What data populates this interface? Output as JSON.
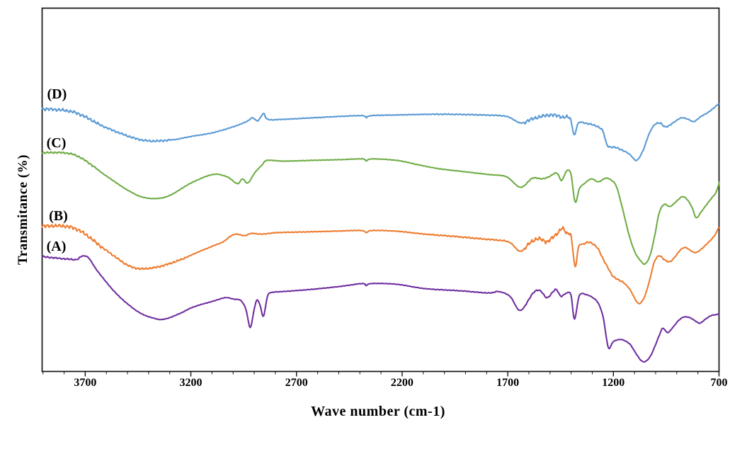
{
  "chart_data": {
    "type": "line",
    "title": "",
    "xlabel": "Wave number (cm-1)",
    "ylabel": "Transmitance (%)",
    "legend_position": "inline-curve-labels",
    "grid": false,
    "x_axis": {
      "min": 700,
      "max": 3904,
      "reversed": true,
      "major_ticks": [
        3700,
        3200,
        2700,
        2200,
        1700,
        1200,
        700
      ],
      "minor_tick_step": 100
    },
    "y_axis": {
      "min": 0,
      "max": 100,
      "ticks": [],
      "note": "axis has no tick labels; values are relative transmittance offsets (arbitrary units, 0 = plot bottom, 100 = plot top)"
    },
    "series": [
      {
        "name": "D",
        "label": "(D)",
        "color": "#5B9BD5",
        "label_pos": [
          3834,
          76.2
        ],
        "default_noise": 0.35,
        "noise_bands": [
          [
            3904,
            3640,
            1.7
          ],
          [
            3640,
            3300,
            1.1
          ],
          [
            2060,
            1700,
            0.6
          ],
          [
            1620,
            1395,
            1.9
          ],
          [
            1340,
            1150,
            0.9
          ],
          [
            1000,
            920,
            0.8
          ]
        ],
        "points": [
          [
            3904,
            72.3
          ],
          [
            3750,
            71.3
          ],
          [
            3600,
            67.1
          ],
          [
            3432,
            63.7
          ],
          [
            3298,
            63.7
          ],
          [
            3198,
            64.7
          ],
          [
            3097,
            65.7
          ],
          [
            2997,
            67.4
          ],
          [
            2936,
            68.8
          ],
          [
            2909,
            69.8
          ],
          [
            2883,
            69.0
          ],
          [
            2856,
            71.0
          ],
          [
            2836,
            69.4
          ],
          [
            2762,
            69.4
          ],
          [
            2628,
            69.8
          ],
          [
            2494,
            70.2
          ],
          [
            2387,
            70.4
          ],
          [
            2370,
            69.8
          ],
          [
            2350,
            70.4
          ],
          [
            2226,
            70.6
          ],
          [
            2025,
            70.8
          ],
          [
            1824,
            70.6
          ],
          [
            1707,
            70.2
          ],
          [
            1640,
            68.4
          ],
          [
            1589,
            69.4
          ],
          [
            1539,
            70.2
          ],
          [
            1489,
            70.6
          ],
          [
            1439,
            70.0
          ],
          [
            1405,
            69.6
          ],
          [
            1385,
            65.1
          ],
          [
            1365,
            68.4
          ],
          [
            1321,
            68.2
          ],
          [
            1271,
            67.3
          ],
          [
            1248,
            65.9
          ],
          [
            1228,
            62.2
          ],
          [
            1187,
            61.6
          ],
          [
            1147,
            60.6
          ],
          [
            1120,
            59.6
          ],
          [
            1090,
            58.1
          ],
          [
            1060,
            60.8
          ],
          [
            1033,
            65.1
          ],
          [
            1007,
            67.8
          ],
          [
            980,
            68.4
          ],
          [
            953,
            67.3
          ],
          [
            913,
            68.6
          ],
          [
            879,
            69.8
          ],
          [
            846,
            69.4
          ],
          [
            819,
            68.8
          ],
          [
            785,
            70.2
          ],
          [
            752,
            71.3
          ],
          [
            725,
            72.5
          ],
          [
            702,
            73.7
          ]
        ]
      },
      {
        "name": "C",
        "label": "(C)",
        "color": "#70AD47",
        "label_pos": [
          3837,
          62.8
        ],
        "default_noise": 0.25,
        "noise_bands": [
          [
            3904,
            3650,
            0.9
          ],
          [
            1620,
            1430,
            0.5
          ]
        ],
        "points": [
          [
            3904,
            60.2
          ],
          [
            3750,
            59.6
          ],
          [
            3600,
            53.8
          ],
          [
            3499,
            49.9
          ],
          [
            3415,
            47.8
          ],
          [
            3315,
            48.1
          ],
          [
            3198,
            51.9
          ],
          [
            3097,
            54.2
          ],
          [
            3030,
            53.6
          ],
          [
            2980,
            51.7
          ],
          [
            2956,
            53.0
          ],
          [
            2930,
            51.9
          ],
          [
            2896,
            54.8
          ],
          [
            2862,
            56.9
          ],
          [
            2839,
            58.1
          ],
          [
            2762,
            57.9
          ],
          [
            2628,
            58.1
          ],
          [
            2494,
            58.3
          ],
          [
            2387,
            58.5
          ],
          [
            2370,
            57.9
          ],
          [
            2346,
            58.5
          ],
          [
            2226,
            58.1
          ],
          [
            2125,
            56.9
          ],
          [
            2025,
            55.8
          ],
          [
            1908,
            55.0
          ],
          [
            1790,
            54.2
          ],
          [
            1707,
            53.6
          ],
          [
            1640,
            50.7
          ],
          [
            1583,
            53.2
          ],
          [
            1539,
            53.0
          ],
          [
            1505,
            53.6
          ],
          [
            1468,
            54.6
          ],
          [
            1445,
            52.6
          ],
          [
            1421,
            55.2
          ],
          [
            1401,
            54.4
          ],
          [
            1381,
            46.6
          ],
          [
            1361,
            50.3
          ],
          [
            1338,
            51.7
          ],
          [
            1304,
            53.0
          ],
          [
            1271,
            52.2
          ],
          [
            1237,
            53.2
          ],
          [
            1214,
            52.8
          ],
          [
            1187,
            51.1
          ],
          [
            1160,
            45.6
          ],
          [
            1127,
            37.8
          ],
          [
            1097,
            32.7
          ],
          [
            1070,
            30.4
          ],
          [
            1050,
            29.6
          ],
          [
            1026,
            32.0
          ],
          [
            1003,
            37.8
          ],
          [
            983,
            43.7
          ],
          [
            959,
            46.0
          ],
          [
            932,
            45.4
          ],
          [
            902,
            46.8
          ],
          [
            875,
            48.1
          ],
          [
            852,
            47.4
          ],
          [
            828,
            45.2
          ],
          [
            808,
            42.3
          ],
          [
            785,
            43.9
          ],
          [
            758,
            46.0
          ],
          [
            731,
            48.0
          ],
          [
            714,
            49.3
          ],
          [
            698,
            52.2
          ]
        ]
      },
      {
        "name": "B",
        "label": "(B)",
        "color": "#ED7D31",
        "label_pos": [
          3827,
          42.7
        ],
        "default_noise": 0.35,
        "noise_bands": [
          [
            3904,
            3620,
            1.9
          ],
          [
            3620,
            3220,
            1.0
          ],
          [
            2060,
            1700,
            0.7
          ],
          [
            1620,
            1395,
            2.1
          ],
          [
            1340,
            1150,
            0.9
          ],
          [
            1000,
            920,
            0.7
          ]
        ],
        "points": [
          [
            3904,
            40.0
          ],
          [
            3750,
            39.4
          ],
          [
            3600,
            33.3
          ],
          [
            3482,
            28.8
          ],
          [
            3382,
            28.5
          ],
          [
            3265,
            30.4
          ],
          [
            3164,
            32.9
          ],
          [
            3097,
            34.5
          ],
          [
            3047,
            35.7
          ],
          [
            3013,
            37.2
          ],
          [
            2986,
            37.8
          ],
          [
            2946,
            37.4
          ],
          [
            2913,
            38.0
          ],
          [
            2862,
            37.8
          ],
          [
            2795,
            38.2
          ],
          [
            2661,
            38.4
          ],
          [
            2527,
            38.6
          ],
          [
            2393,
            38.8
          ],
          [
            2370,
            38.2
          ],
          [
            2343,
            38.8
          ],
          [
            2226,
            38.6
          ],
          [
            2092,
            37.8
          ],
          [
            1958,
            37.2
          ],
          [
            1824,
            36.5
          ],
          [
            1740,
            36.1
          ],
          [
            1690,
            35.5
          ],
          [
            1640,
            33.1
          ],
          [
            1589,
            35.7
          ],
          [
            1549,
            36.5
          ],
          [
            1515,
            35.7
          ],
          [
            1489,
            36.8
          ],
          [
            1462,
            38.2
          ],
          [
            1442,
            39.4
          ],
          [
            1421,
            38.0
          ],
          [
            1401,
            37.4
          ],
          [
            1381,
            28.8
          ],
          [
            1365,
            34.3
          ],
          [
            1341,
            35.1
          ],
          [
            1311,
            35.5
          ],
          [
            1277,
            34.1
          ],
          [
            1251,
            31.2
          ],
          [
            1227,
            28.7
          ],
          [
            1204,
            26.3
          ],
          [
            1177,
            25.3
          ],
          [
            1147,
            24.2
          ],
          [
            1120,
            22.4
          ],
          [
            1093,
            19.5
          ],
          [
            1076,
            18.7
          ],
          [
            1053,
            20.5
          ],
          [
            1029,
            25.0
          ],
          [
            1006,
            30.2
          ],
          [
            983,
            31.8
          ],
          [
            959,
            30.8
          ],
          [
            932,
            30.2
          ],
          [
            908,
            31.6
          ],
          [
            882,
            33.5
          ],
          [
            858,
            34.1
          ],
          [
            835,
            33.3
          ],
          [
            811,
            32.7
          ],
          [
            788,
            33.5
          ],
          [
            761,
            34.9
          ],
          [
            737,
            36.3
          ],
          [
            717,
            37.8
          ],
          [
            702,
            39.6
          ]
        ]
      },
      {
        "name": "A",
        "label": "(A)",
        "color": "#7030A0",
        "label_pos": [
          3837,
          34.3
        ],
        "default_noise": 0.25,
        "noise_bands": [
          [
            3904,
            3740,
            0.8
          ],
          [
            2060,
            1750,
            0.4
          ],
          [
            1620,
            1430,
            0.7
          ]
        ],
        "points": [
          [
            3904,
            31.6
          ],
          [
            3750,
            30.8
          ],
          [
            3727,
            31.4
          ],
          [
            3707,
            31.8
          ],
          [
            3683,
            31.2
          ],
          [
            3640,
            27.5
          ],
          [
            3549,
            21.2
          ],
          [
            3449,
            16.4
          ],
          [
            3372,
            14.6
          ],
          [
            3325,
            14.4
          ],
          [
            3258,
            15.8
          ],
          [
            3198,
            17.5
          ],
          [
            3147,
            18.5
          ],
          [
            3097,
            19.3
          ],
          [
            3037,
            20.3
          ],
          [
            2996,
            19.9
          ],
          [
            2963,
            19.5
          ],
          [
            2939,
            17.0
          ],
          [
            2919,
            12.1
          ],
          [
            2899,
            17.5
          ],
          [
            2886,
            19.7
          ],
          [
            2872,
            18.1
          ],
          [
            2856,
            15.2
          ],
          [
            2836,
            20.9
          ],
          [
            2809,
            21.8
          ],
          [
            2762,
            22.0
          ],
          [
            2628,
            22.6
          ],
          [
            2494,
            23.4
          ],
          [
            2387,
            24.2
          ],
          [
            2370,
            23.6
          ],
          [
            2346,
            24.2
          ],
          [
            2226,
            24.0
          ],
          [
            2092,
            22.8
          ],
          [
            1925,
            22.2
          ],
          [
            1790,
            21.6
          ],
          [
            1746,
            22.0
          ],
          [
            1690,
            20.7
          ],
          [
            1640,
            16.8
          ],
          [
            1580,
            21.6
          ],
          [
            1546,
            22.2
          ],
          [
            1513,
            20.3
          ],
          [
            1473,
            22.6
          ],
          [
            1449,
            20.7
          ],
          [
            1421,
            21.6
          ],
          [
            1401,
            21.1
          ],
          [
            1384,
            14.4
          ],
          [
            1361,
            20.9
          ],
          [
            1327,
            21.1
          ],
          [
            1297,
            20.3
          ],
          [
            1271,
            18.7
          ],
          [
            1248,
            14.8
          ],
          [
            1224,
            6.6
          ],
          [
            1201,
            8.2
          ],
          [
            1170,
            8.8
          ],
          [
            1144,
            8.4
          ],
          [
            1120,
            7.4
          ],
          [
            1097,
            5.3
          ],
          [
            1070,
            3.1
          ],
          [
            1050,
            2.7
          ],
          [
            1026,
            4.1
          ],
          [
            1003,
            7.0
          ],
          [
            983,
            9.9
          ],
          [
            966,
            11.9
          ],
          [
            943,
            10.7
          ],
          [
            919,
            12.1
          ],
          [
            892,
            14.0
          ],
          [
            865,
            15.0
          ],
          [
            838,
            14.8
          ],
          [
            815,
            14.0
          ],
          [
            791,
            13.3
          ],
          [
            764,
            14.4
          ],
          [
            737,
            15.4
          ],
          [
            717,
            15.6
          ],
          [
            702,
            15.8
          ]
        ]
      }
    ]
  }
}
